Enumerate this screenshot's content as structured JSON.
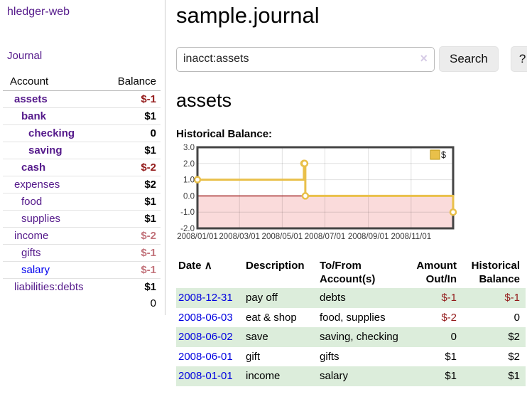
{
  "app": {
    "brand": "hledger-web"
  },
  "nav": {
    "journal": "Journal"
  },
  "sidebar": {
    "columns": {
      "account": "Account",
      "balance": "Balance"
    },
    "accounts": [
      {
        "name": "assets",
        "depth": 1,
        "bold": true,
        "balance": "$-1",
        "neg": "strong"
      },
      {
        "name": "bank",
        "depth": 2,
        "bold": true,
        "balance": "$1"
      },
      {
        "name": "checking",
        "depth": 3,
        "bold": true,
        "balance": "0"
      },
      {
        "name": "saving",
        "depth": 3,
        "bold": true,
        "balance": "$1"
      },
      {
        "name": "cash",
        "depth": 2,
        "bold": true,
        "balance": "$-2",
        "neg": "strong"
      },
      {
        "name": "expenses",
        "depth": 1,
        "bold": false,
        "balance": "$2"
      },
      {
        "name": "food",
        "depth": 2,
        "bold": false,
        "balance": "$1"
      },
      {
        "name": "supplies",
        "depth": 2,
        "bold": false,
        "balance": "$1"
      },
      {
        "name": "income",
        "depth": 1,
        "bold": false,
        "balance": "$-2",
        "neg": "light"
      },
      {
        "name": "gifts",
        "depth": 2,
        "bold": false,
        "balance": "$-1",
        "neg": "light"
      },
      {
        "name": "salary",
        "depth": 2,
        "bold": false,
        "balance": "$-1",
        "neg": "light",
        "link_color": "blue"
      },
      {
        "name": "liabilities:debts",
        "depth": 1,
        "bold": false,
        "balance": "$1"
      }
    ],
    "total": "0"
  },
  "header": {
    "title": "sample.journal"
  },
  "search": {
    "value": "inacct:assets",
    "clear_label": "×",
    "button": "Search",
    "help": "?"
  },
  "account_page": {
    "heading": "assets",
    "chart_label": "Historical Balance:"
  },
  "chart_data": {
    "type": "line",
    "title": "Historical Balance",
    "series": [
      {
        "name": "$",
        "color": "#e9c04a",
        "step": true,
        "points": [
          [
            "2008-01-01",
            1
          ],
          [
            "2008-06-01",
            2
          ],
          [
            "2008-06-02",
            2
          ],
          [
            "2008-06-03",
            0
          ],
          [
            "2008-12-31",
            -1
          ]
        ]
      }
    ],
    "x_range": [
      "2008-01-01",
      "2008-12-31"
    ],
    "ylim": [
      -2,
      3
    ],
    "y_ticks": [
      3,
      2,
      1,
      0,
      -1,
      -2
    ],
    "y_tick_labels": [
      "3.0",
      "2.0",
      "1.0",
      "0.0",
      "-1.0",
      "-2.0"
    ],
    "x_tick_labels": [
      "2008/01/01",
      "2008/03/01",
      "2008/05/01",
      "2008/07/01",
      "2008/09/01",
      "2008/11/01"
    ],
    "legend": {
      "label": "$",
      "position": "top-right"
    },
    "grid": true,
    "negative_region_color": "#fadbdb",
    "zero_line_color": "#9a1515",
    "border_color": "#444444",
    "marker": {
      "shape": "circle-open",
      "fill": "#ffffff"
    }
  },
  "register": {
    "columns": {
      "date": "Date",
      "sort_arrow": "∧",
      "description": "Description",
      "tofrom_l1": "To/From",
      "tofrom_l2": "Account(s)",
      "amount_l1": "Amount",
      "amount_l2": "Out/In",
      "balance_l1": "Historical",
      "balance_l2": "Balance"
    },
    "rows": [
      {
        "date": "2008-12-31",
        "description": "pay off",
        "accounts": "debts",
        "amount": "$-1",
        "amount_neg": true,
        "balance": "$-1",
        "balance_neg": true
      },
      {
        "date": "2008-06-03",
        "description": "eat & shop",
        "accounts": "food, supplies",
        "amount": "$-2",
        "amount_neg": true,
        "balance": "0",
        "balance_neg": false
      },
      {
        "date": "2008-06-02",
        "description": "save",
        "accounts": "saving, checking",
        "amount": "0",
        "amount_neg": false,
        "balance": "$2",
        "balance_neg": false
      },
      {
        "date": "2008-06-01",
        "description": "gift",
        "accounts": "gifts",
        "amount": "$1",
        "amount_neg": false,
        "balance": "$2",
        "balance_neg": false
      },
      {
        "date": "2008-01-01",
        "description": "income",
        "accounts": "salary",
        "amount": "$1",
        "amount_neg": false,
        "balance": "$1",
        "balance_neg": false
      }
    ]
  }
}
